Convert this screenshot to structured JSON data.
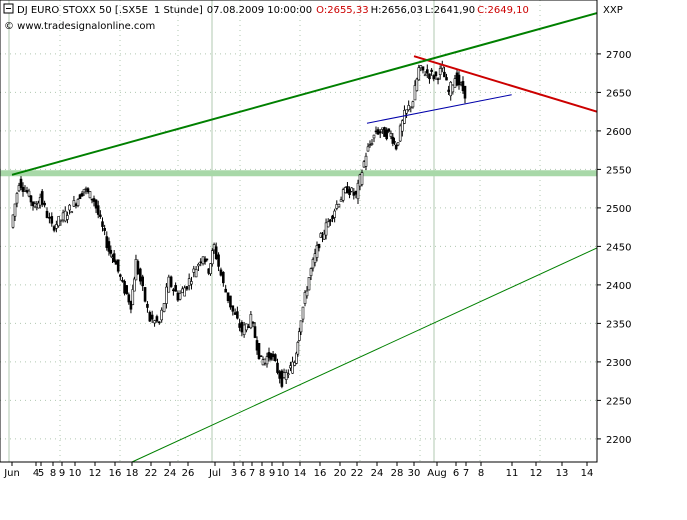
{
  "header": {
    "instrument": "DJ EURO STOXX 50 [.SX5E",
    "interval": "1 Stunde]",
    "datetime": "07.08.2009 10:00:00",
    "open": "O:2655,33",
    "high": "H:2656,03",
    "low": "L:2641,90",
    "close": "C:2649,10",
    "source": "© www.tradesignalonline.com",
    "exchange": "XXP"
  },
  "colors": {
    "background": "#ffffff",
    "grid": "#b0c8b0",
    "axis": "#000000",
    "candle_up": "#ffffff",
    "candle_down": "#000000",
    "candle_wick": "#000000",
    "open_text": "#cc0000",
    "close_text": "#cc0000",
    "resistance_line": "#cc0000",
    "upper_channel": "#008000",
    "lower_channel": "#008000",
    "support_band": "#a8d8a8",
    "wedge_line": "#0000aa"
  },
  "chart_data": {
    "type": "candlestick",
    "title": "DJ EURO STOXX 50 [.SX5E 1 Stunde]",
    "ylim": [
      2170,
      2770
    ],
    "y_ticks": [
      2200,
      2250,
      2300,
      2350,
      2400,
      2450,
      2500,
      2550,
      2600,
      2650,
      2700
    ],
    "grid": true,
    "x_ticks": [
      "Jun",
      "4",
      "5",
      "8",
      "9",
      "10",
      "12",
      "16",
      "18",
      "22",
      "24",
      "26",
      "Jul",
      "3",
      "6",
      "7",
      "8",
      "9",
      "10",
      "14",
      "16",
      "20",
      "22",
      "24",
      "28",
      "30",
      "Aug",
      "6",
      "7",
      "8",
      "11",
      "12",
      "13",
      "14"
    ],
    "x_axis_months": [
      {
        "label": "Jun",
        "index": 0
      },
      {
        "label": "Jul",
        "index": 12
      },
      {
        "label": "Aug",
        "index": 26
      }
    ],
    "close_path": [
      {
        "date": "2009-06-01",
        "close": 2475
      },
      {
        "date": "2009-06-02",
        "close": 2535
      },
      {
        "date": "2009-06-03",
        "close": 2520
      },
      {
        "date": "2009-06-04",
        "close": 2500
      },
      {
        "date": "2009-06-05",
        "close": 2515
      },
      {
        "date": "2009-06-08",
        "close": 2475
      },
      {
        "date": "2009-06-09",
        "close": 2485
      },
      {
        "date": "2009-06-10",
        "close": 2505
      },
      {
        "date": "2009-06-11",
        "close": 2525
      },
      {
        "date": "2009-06-12",
        "close": 2510
      },
      {
        "date": "2009-06-15",
        "close": 2445
      },
      {
        "date": "2009-06-16",
        "close": 2435
      },
      {
        "date": "2009-06-17",
        "close": 2400
      },
      {
        "date": "2009-06-18",
        "close": 2375
      },
      {
        "date": "2009-06-19",
        "close": 2430
      },
      {
        "date": "2009-06-22",
        "close": 2355
      },
      {
        "date": "2009-06-23",
        "close": 2350
      },
      {
        "date": "2009-06-24",
        "close": 2405
      },
      {
        "date": "2009-06-25",
        "close": 2385
      },
      {
        "date": "2009-06-26",
        "close": 2400
      },
      {
        "date": "2009-06-29",
        "close": 2440
      },
      {
        "date": "2009-06-30",
        "close": 2420
      },
      {
        "date": "2009-07-01",
        "close": 2450
      },
      {
        "date": "2009-07-02",
        "close": 2400
      },
      {
        "date": "2009-07-03",
        "close": 2365
      },
      {
        "date": "2009-07-06",
        "close": 2340
      },
      {
        "date": "2009-07-07",
        "close": 2355
      },
      {
        "date": "2009-07-08",
        "close": 2300
      },
      {
        "date": "2009-07-09",
        "close": 2310
      },
      {
        "date": "2009-07-10",
        "close": 2275
      },
      {
        "date": "2009-07-13",
        "close": 2300
      },
      {
        "date": "2009-07-14",
        "close": 2345
      },
      {
        "date": "2009-07-15",
        "close": 2410
      },
      {
        "date": "2009-07-16",
        "close": 2455
      },
      {
        "date": "2009-07-17",
        "close": 2470
      },
      {
        "date": "2009-07-20",
        "close": 2510
      },
      {
        "date": "2009-07-21",
        "close": 2525
      },
      {
        "date": "2009-07-22",
        "close": 2515
      },
      {
        "date": "2009-07-23",
        "close": 2570
      },
      {
        "date": "2009-07-24",
        "close": 2600
      },
      {
        "date": "2009-07-27",
        "close": 2595
      },
      {
        "date": "2009-07-28",
        "close": 2580
      },
      {
        "date": "2009-07-29",
        "close": 2620
      },
      {
        "date": "2009-07-30",
        "close": 2640
      },
      {
        "date": "2009-07-31",
        "close": 2680
      },
      {
        "date": "2009-08-03",
        "close": 2670
      },
      {
        "date": "2009-08-04",
        "close": 2680
      },
      {
        "date": "2009-08-05",
        "close": 2650
      },
      {
        "date": "2009-08-06",
        "close": 2670
      },
      {
        "date": "2009-08-07",
        "close": 2649
      }
    ],
    "trendlines": [
      {
        "color": "#cc0000",
        "from": {
          "date": "2009-07-30",
          "value": 2697
        },
        "to": {
          "date": "2009-08-14",
          "value": 2625
        }
      },
      {
        "color": "#008000",
        "from": {
          "date": "2009-06-01",
          "value": 2543
        },
        "to": {
          "date": "2009-08-14",
          "value": 2753
        }
      },
      {
        "color": "#008000",
        "from": {
          "date": "2009-06-18",
          "value": 2170
        },
        "to": {
          "date": "2009-08-14",
          "value": 2448
        }
      },
      {
        "color": "#0000aa",
        "from": {
          "date": "2009-07-23",
          "value": 2610
        },
        "to": {
          "date": "2009-08-10",
          "value": 2647
        }
      }
    ],
    "horizontal_bands": [
      {
        "value": 2545,
        "color": "#a8d8a8"
      }
    ]
  }
}
